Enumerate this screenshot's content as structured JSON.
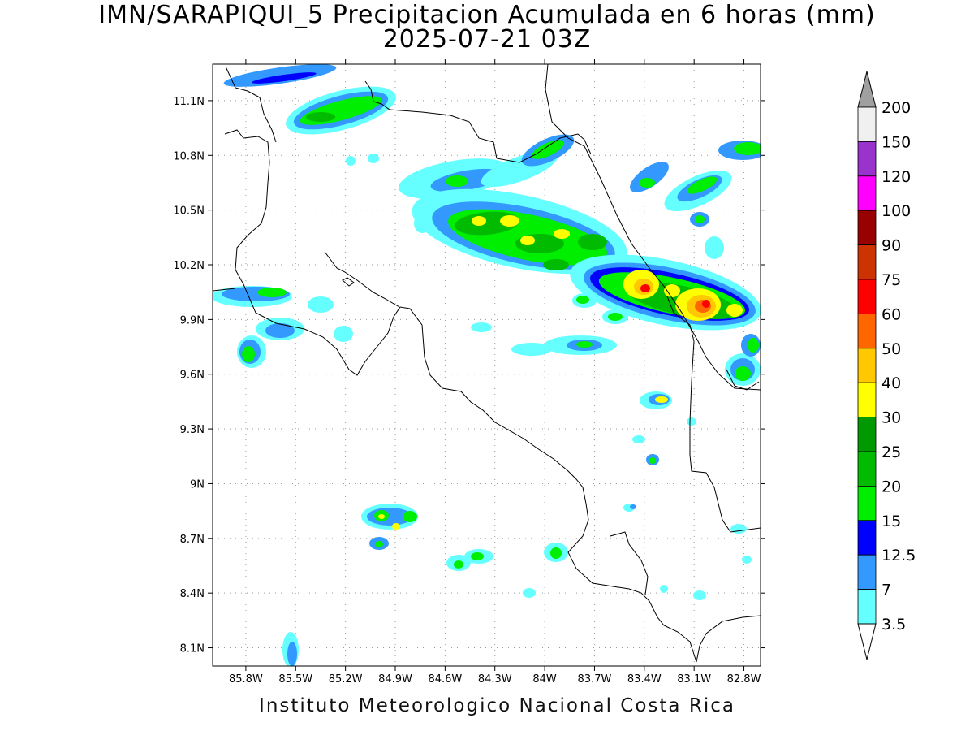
{
  "title": {
    "line1": "IMN/SARAPIQUI_5 Precipitacion Acumulada en 6 horas (mm)",
    "line2": "2025-07-21 03Z"
  },
  "footer": "Instituto Meteorologico Nacional Costa Rica",
  "map": {
    "lon_range": [
      -86.0,
      -82.7
    ],
    "lat_range": [
      8.0,
      11.3
    ],
    "lat_ticks": [
      "11.1N",
      "10.8N",
      "10.5N",
      "10.2N",
      "9.9N",
      "9.6N",
      "9.3N",
      "9N",
      "8.7N",
      "8.4N",
      "8.1N"
    ],
    "lon_ticks": [
      "85.8W",
      "85.5W",
      "85.2W",
      "84.9W",
      "84.6W",
      "84.3W",
      "84W",
      "83.7W",
      "83.4W",
      "83.1W",
      "82.8W"
    ],
    "grid": true
  },
  "colorbar": {
    "labels": [
      "200",
      "150",
      "120",
      "100",
      "90",
      "75",
      "60",
      "50",
      "40",
      "30",
      "25",
      "20",
      "15",
      "12.5",
      "7",
      "3.5"
    ],
    "colors": [
      "#a0a0a0",
      "#f0f0f0",
      "#9a32cd",
      "#ff00ff",
      "#990000",
      "#cc3300",
      "#ff0000",
      "#ff6600",
      "#ffc800",
      "#ffff00",
      "#009900",
      "#00bb00",
      "#00ee00",
      "#0000ff",
      "#3399ff",
      "#66ffff"
    ],
    "units": "mm"
  }
}
